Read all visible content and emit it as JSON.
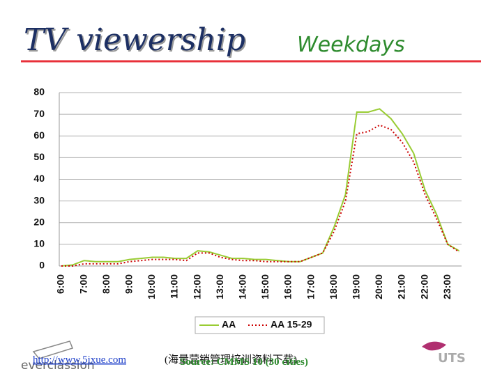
{
  "header": {
    "title": "TV viewership",
    "subtitle": "Weekdays"
  },
  "chart_data": {
    "type": "line",
    "categories": [
      "6:00",
      null,
      "7:00",
      null,
      "8:00",
      null,
      "9:00",
      null,
      "10:00",
      null,
      "11:00",
      null,
      "12:00",
      null,
      "13:00",
      null,
      "14:00",
      null,
      "15:00",
      null,
      "16:00",
      null,
      "17:00",
      null,
      "18:00",
      null,
      "19:00",
      null,
      "20:00",
      null,
      "21:00",
      null,
      "22:00",
      null,
      "23:00",
      null
    ],
    "series": [
      {
        "name": "AA",
        "color": "#99cc33",
        "line_style": "solid",
        "values": [
          0,
          0.5,
          2.5,
          2,
          2,
          2,
          3,
          3.5,
          4,
          4,
          3.5,
          3.5,
          7,
          6.5,
          5,
          3.5,
          3.5,
          3,
          3,
          2.5,
          2,
          2,
          4,
          6,
          18,
          33,
          71,
          71,
          72.5,
          68,
          61,
          52,
          35,
          24,
          10,
          7
        ]
      },
      {
        "name": "AA 15-29",
        "color": "#cc0000",
        "line_style": "dotted",
        "values": [
          0,
          0,
          1,
          1,
          1,
          1,
          2,
          2.5,
          3,
          3,
          3,
          2.5,
          6,
          6,
          4,
          3,
          2.5,
          2.5,
          2,
          2,
          2,
          2,
          4,
          6,
          16,
          30,
          61,
          62,
          65,
          63,
          57,
          48,
          33,
          22,
          10,
          6.5
        ]
      }
    ],
    "ylim": [
      0,
      80
    ],
    "yticks": [
      0,
      10,
      20,
      30,
      40,
      50,
      60,
      70,
      80
    ],
    "grid": true,
    "legend": "bottom"
  },
  "footer": {
    "url": "http://www.5ixue.com",
    "note": "(海量营销管理培训资料下载)",
    "source": "Source: CMMS 10 (30 cities)",
    "logo_left": "everclassion",
    "logo_right": "UTS"
  }
}
